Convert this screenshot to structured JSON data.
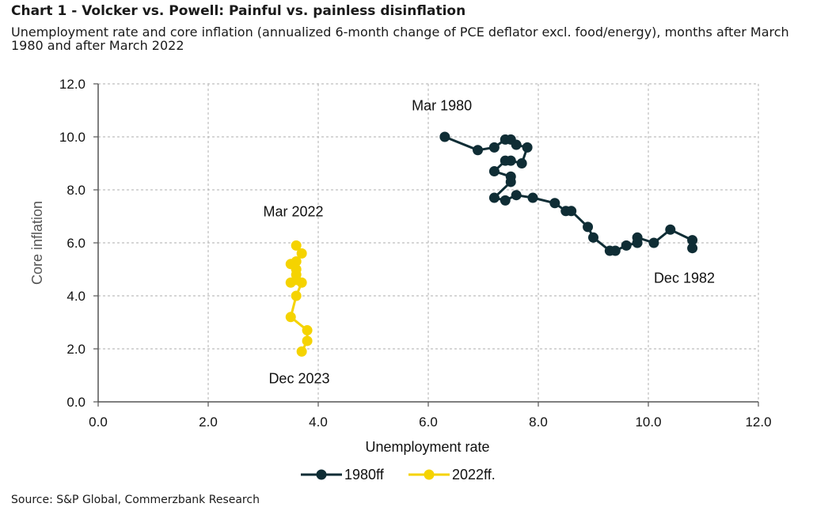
{
  "header": {
    "title": "Chart 1 - Volcker vs. Powell: Painful vs. painless disinflation",
    "subtitle": "Unemployment rate and core inflation (annualized 6-month change of PCE deflator excl. food/energy), months after March 1980 and after March 2022"
  },
  "footer": {
    "source": "Source: S&P Global, Commerzbank Research"
  },
  "colors": {
    "series_1980": "#0f2d35",
    "series_2022": "#f5d300",
    "grid": "#bdbdbd",
    "axis": "#555555"
  },
  "chart_data": {
    "type": "scatter",
    "xlabel": "Unemployment rate",
    "ylabel": "Core inflation",
    "xlim": [
      0,
      12
    ],
    "ylim": [
      0,
      12
    ],
    "xticks": [
      "0.0",
      "2.0",
      "4.0",
      "6.0",
      "8.0",
      "10.0",
      "12.0"
    ],
    "yticks": [
      "0.0",
      "2.0",
      "4.0",
      "6.0",
      "8.0",
      "10.0",
      "12.0"
    ],
    "grid": true,
    "legend_position": "bottom-center",
    "series": [
      {
        "name": "1980ff",
        "color": "#0f2d35",
        "points": [
          [
            6.3,
            10.0
          ],
          [
            6.9,
            9.5
          ],
          [
            7.2,
            9.6
          ],
          [
            7.4,
            9.9
          ],
          [
            7.5,
            9.9
          ],
          [
            7.6,
            9.7
          ],
          [
            7.8,
            9.6
          ],
          [
            7.7,
            9.0
          ],
          [
            7.5,
            9.1
          ],
          [
            7.4,
            9.1
          ],
          [
            7.2,
            8.7
          ],
          [
            7.5,
            8.5
          ],
          [
            7.5,
            8.3
          ],
          [
            7.2,
            7.7
          ],
          [
            7.4,
            7.6
          ],
          [
            7.6,
            7.8
          ],
          [
            7.9,
            7.7
          ],
          [
            8.3,
            7.5
          ],
          [
            8.5,
            7.2
          ],
          [
            8.6,
            7.2
          ],
          [
            8.9,
            6.6
          ],
          [
            9.0,
            6.2
          ],
          [
            9.3,
            5.7
          ],
          [
            9.4,
            5.7
          ],
          [
            9.6,
            5.9
          ],
          [
            9.8,
            6.0
          ],
          [
            9.8,
            6.2
          ],
          [
            10.1,
            6.0
          ],
          [
            10.4,
            6.5
          ],
          [
            10.8,
            6.1
          ],
          [
            10.8,
            5.8
          ]
        ]
      },
      {
        "name": "2022ff.",
        "color": "#f5d300",
        "points": [
          [
            3.6,
            5.9
          ],
          [
            3.7,
            5.6
          ],
          [
            3.6,
            5.3
          ],
          [
            3.5,
            5.2
          ],
          [
            3.6,
            5.0
          ],
          [
            3.6,
            4.8
          ],
          [
            3.5,
            4.5
          ],
          [
            3.6,
            4.6
          ],
          [
            3.7,
            4.5
          ],
          [
            3.6,
            4.0
          ],
          [
            3.5,
            3.2
          ],
          [
            3.8,
            2.7
          ],
          [
            3.8,
            2.3
          ],
          [
            3.7,
            1.9
          ]
        ]
      }
    ],
    "annotations": [
      {
        "text": "Mar 1980",
        "x": 5.7,
        "y": 11.0
      },
      {
        "text": "Mar 2022",
        "x": 3.0,
        "y": 7.0
      },
      {
        "text": "Dec 1982",
        "x": 10.1,
        "y": 4.5
      },
      {
        "text": "Dec 2023",
        "x": 3.1,
        "y": 0.7
      }
    ]
  }
}
